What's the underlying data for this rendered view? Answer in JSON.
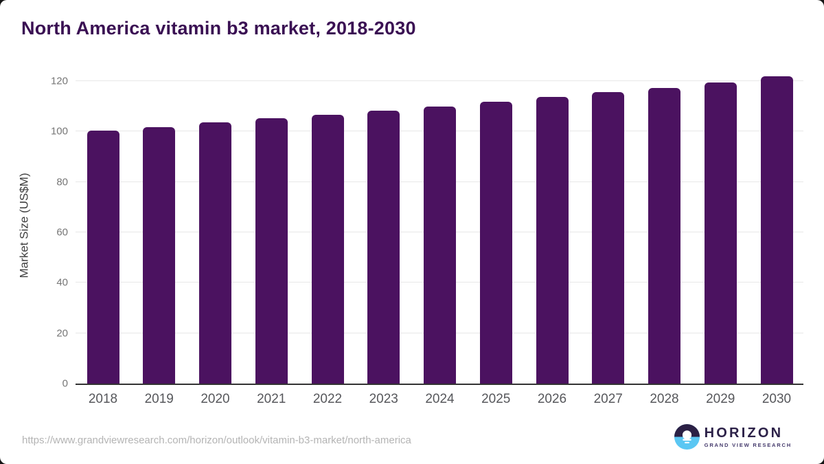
{
  "chart_data": {
    "type": "bar",
    "title": "North America vitamin b3 market, 2018-2030",
    "categories": [
      "2018",
      "2019",
      "2020",
      "2021",
      "2022",
      "2023",
      "2024",
      "2025",
      "2026",
      "2027",
      "2028",
      "2029",
      "2030"
    ],
    "values": [
      100.3,
      101.6,
      103.6,
      105.2,
      106.7,
      108.2,
      109.9,
      111.7,
      113.6,
      115.6,
      117.3,
      119.5,
      121.9
    ],
    "xlabel": "",
    "ylabel": "Market Size (US$M)",
    "yticks": [
      0,
      20,
      40,
      60,
      80,
      100,
      120
    ],
    "ylim": [
      0,
      125
    ],
    "grid": "horizontal",
    "legend": "none",
    "bar_color": "#4b1260",
    "title_color": "#3a1053",
    "gridline_color": "#e8e8e8",
    "axis_line_color": "#333333"
  },
  "footer": {
    "source_url": "https://www.grandviewresearch.com/horizon/outlook/vitamin-b3-market/north-america",
    "logo": {
      "name": "HORIZON",
      "tagline": "GRAND VIEW RESEARCH",
      "icon_top_color": "#2b2045",
      "icon_bottom_color": "#5bc7f3"
    }
  }
}
